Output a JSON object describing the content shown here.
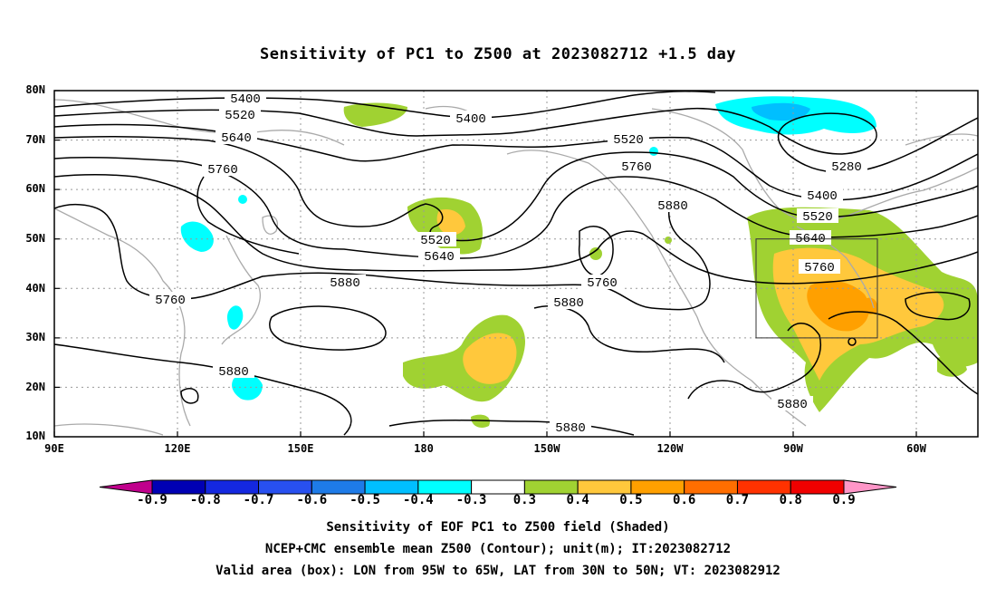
{
  "title": "Sensitivity of PC1 to Z500 at 2023082712 +1.5 day",
  "map": {
    "lat_ticks": [
      "80N",
      "70N",
      "60N",
      "50N",
      "40N",
      "30N",
      "20N",
      "10N"
    ],
    "lon_ticks": [
      "90E",
      "120E",
      "150E",
      "180",
      "150W",
      "120W",
      "90W",
      "60W"
    ],
    "contour_labels": [
      "5400",
      "5520",
      "5640",
      "5760",
      "5400",
      "5520",
      "5760",
      "5880",
      "5280",
      "5400",
      "5520",
      "5640",
      "5760",
      "5520",
      "5640",
      "5880",
      "5760",
      "5880",
      "5760",
      "5880",
      "5880",
      "5880"
    ],
    "valid_box": {
      "lon_from": "95W",
      "lon_to": "65W",
      "lat_from": "30N",
      "lat_to": "50N"
    },
    "colors": {
      "land": "#aaaaaa",
      "contour": "#000000",
      "grid": "#999999",
      "box": "#333333"
    }
  },
  "colorbar": {
    "labels": [
      "-0.9",
      "-0.8",
      "-0.7",
      "-0.6",
      "-0.5",
      "-0.4",
      "-0.3",
      "0.3",
      "0.4",
      "0.5",
      "0.6",
      "0.7",
      "0.8",
      "0.9"
    ],
    "colors": [
      "#c0008c",
      "#0000b4",
      "#1428e0",
      "#2850f0",
      "#1e7be8",
      "#00bfff",
      "#00ffff",
      "#ffffff",
      "#a0d232",
      "#ffc83c",
      "#ffa000",
      "#ff6e00",
      "#ff3200",
      "#f00000",
      "#ff96c8"
    ]
  },
  "captions": [
    "Sensitivity of EOF PC1 to Z500 field (Shaded)",
    "NCEP+CMC ensemble mean Z500 (Contour); unit(m); IT:2023082712",
    "Valid area (box): LON from 95W to 65W, LAT from 30N to 50N; VT: 2023082912"
  ]
}
